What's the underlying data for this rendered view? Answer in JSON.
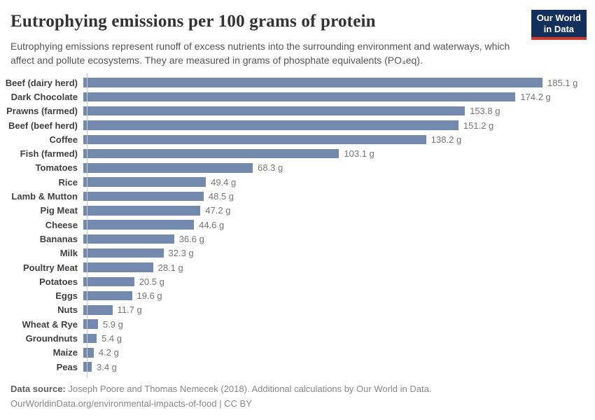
{
  "header": {
    "title": "Eutrophying emissions per 100 grams of protein",
    "subtitle": "Eutrophying emissions represent runoff of excess nutrients into the surrounding environment and waterways, which affect and pollute ecosystems. They are measured in grams of phosphate equivalents (PO₄eq).",
    "logo": {
      "line1": "Our World",
      "line2": "in Data",
      "bg_color": "#12305b",
      "stripe_color": "#d8352a"
    }
  },
  "chart_data": {
    "type": "bar",
    "orientation": "horizontal",
    "title": "Eutrophying emissions per 100 grams of protein",
    "xlabel": "",
    "ylabel": "",
    "xlim": [
      0,
      185.1
    ],
    "grid": false,
    "legend": "none",
    "bar_color": "#7389ae",
    "value_suffix": " g",
    "categories": [
      "Beef (dairy herd)",
      "Dark Chocolate",
      "Prawns (farmed)",
      "Beef (beef herd)",
      "Coffee",
      "Fish (farmed)",
      "Tomatoes",
      "Rice",
      "Lamb & Mutton",
      "Pig Meat",
      "Cheese",
      "Bananas",
      "Milk",
      "Poultry Meat",
      "Potatoes",
      "Eggs",
      "Nuts",
      "Wheat & Rye",
      "Groundnuts",
      "Maize",
      "Peas"
    ],
    "values": [
      185.1,
      174.2,
      153.8,
      151.2,
      138.2,
      103.1,
      68.3,
      49.4,
      48.5,
      47.2,
      44.6,
      36.6,
      32.3,
      28.1,
      20.5,
      19.6,
      11.7,
      5.9,
      5.4,
      4.2,
      3.4
    ]
  },
  "footer": {
    "datasource_label": "Data source:",
    "datasource_text": "Joseph Poore and Thomas Nemecek (2018). Additional calculations by Our World in Data.",
    "link_text": "OurWorldinData.org/environmental-impacts-of-food | CC BY"
  }
}
